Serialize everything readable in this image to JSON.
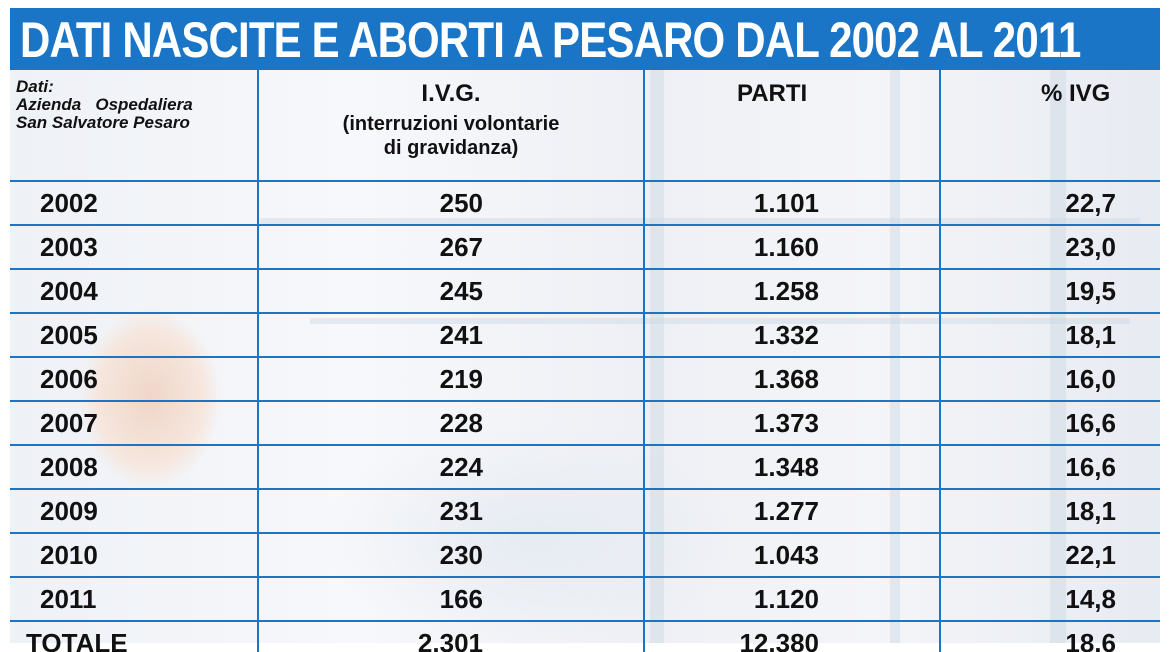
{
  "title": "DATI  NASCITE E ABORTI A PESARO DAL 2002 AL 2011",
  "source": {
    "line1": "Dati:",
    "line2": "Azienda   Ospedaliera",
    "line3": "San Salvatore Pesaro"
  },
  "columns": {
    "ivg": "I.V.G.",
    "ivg_sub_1": "(interruzioni volontarie",
    "ivg_sub_2": "di gravidanza)",
    "parti": "PARTI",
    "pct_ivg": "% IVG"
  },
  "rows": [
    {
      "year": "2002",
      "ivg": "250",
      "parti": "1.101",
      "pct": "22,7"
    },
    {
      "year": "2003",
      "ivg": "267",
      "parti": "1.160",
      "pct": "23,0"
    },
    {
      "year": "2004",
      "ivg": "245",
      "parti": "1.258",
      "pct": "19,5"
    },
    {
      "year": "2005",
      "ivg": "241",
      "parti": "1.332",
      "pct": "18,1"
    },
    {
      "year": "2006",
      "ivg": "219",
      "parti": "1.368",
      "pct": "16,0"
    },
    {
      "year": "2007",
      "ivg": "228",
      "parti": "1.373",
      "pct": "16,6"
    },
    {
      "year": "2008",
      "ivg": "224",
      "parti": "1.348",
      "pct": "16,6"
    },
    {
      "year": "2009",
      "ivg": "231",
      "parti": "1.277",
      "pct": "18,1"
    },
    {
      "year": "2010",
      "ivg": "230",
      "parti": "1.043",
      "pct": "22,1"
    },
    {
      "year": "2011",
      "ivg": "166",
      "parti": "1.120",
      "pct": "14,8"
    }
  ],
  "total": {
    "label": "TOTALE",
    "ivg": "2.301",
    "parti": "12.380",
    "pct": "18,6"
  },
  "colors": {
    "accent": "#1a75c6",
    "title_text": "#ffffff",
    "body_text": "#111111"
  }
}
